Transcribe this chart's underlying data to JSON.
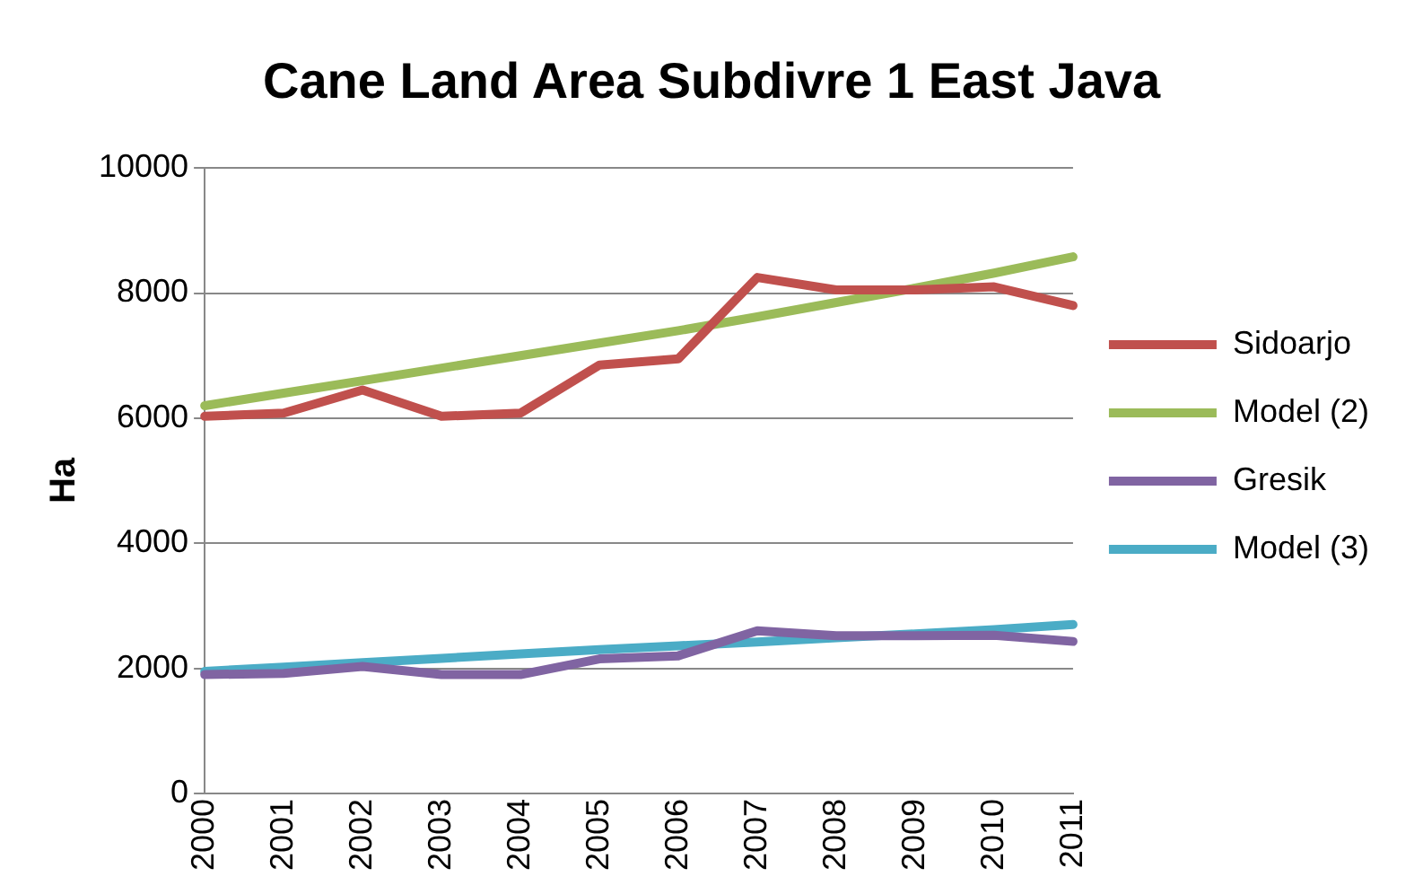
{
  "chart_data": {
    "type": "line",
    "title": "Cane Land Area Subdivre 1 East Java",
    "ylabel": "Ha",
    "categories": [
      "2000",
      "2001",
      "2002",
      "2003",
      "2004",
      "2005",
      "2006",
      "2007",
      "2008",
      "2009",
      "2010",
      "2011"
    ],
    "series": [
      {
        "name": "Sidoarjo",
        "color": "#c0504d",
        "values": [
          6030,
          6080,
          6450,
          6030,
          6080,
          6850,
          6950,
          8250,
          8050,
          8050,
          8100,
          7800
        ]
      },
      {
        "name": "Model (2)",
        "color": "#9bbb59",
        "values": [
          6200,
          6400,
          6600,
          6800,
          7000,
          7200,
          7400,
          7620,
          7850,
          8080,
          8320,
          8580
        ]
      },
      {
        "name": "Gresik",
        "color": "#8064a2",
        "values": [
          1900,
          1920,
          2030,
          1900,
          1900,
          2150,
          2200,
          2600,
          2520,
          2520,
          2530,
          2430
        ]
      },
      {
        "name": "Model (3)",
        "color": "#4bacc6",
        "values": [
          1950,
          2020,
          2090,
          2160,
          2230,
          2300,
          2360,
          2420,
          2490,
          2550,
          2620,
          2700
        ]
      }
    ],
    "ylim": [
      0,
      10000
    ],
    "yticks": [
      0,
      2000,
      4000,
      6000,
      8000,
      10000
    ],
    "grid": "y",
    "legend": "right",
    "marker": "none",
    "line_style": "solid"
  }
}
